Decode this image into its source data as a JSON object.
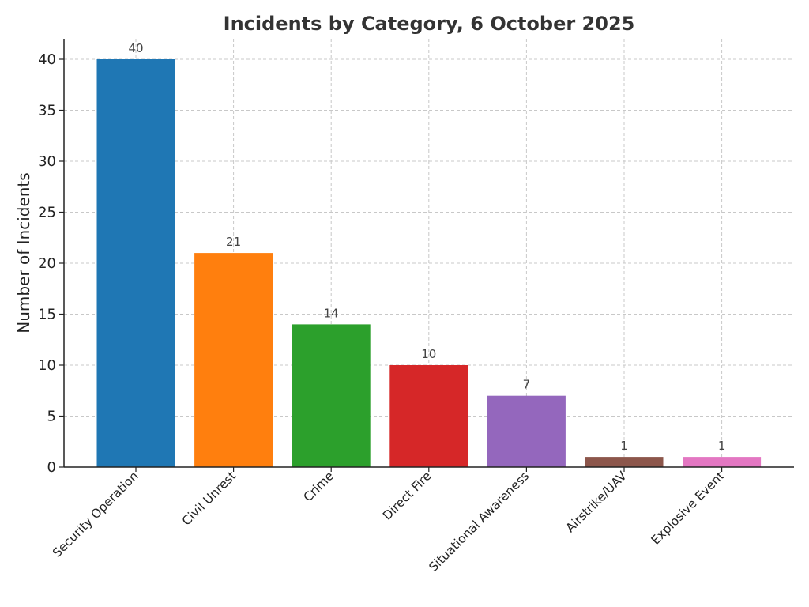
{
  "chart_data": {
    "type": "bar",
    "title": "Incidents by Category, 6 October 2025",
    "xlabel": "",
    "ylabel": "Number of Incidents",
    "categories": [
      "Security Operation",
      "Civil Unrest",
      "Crime",
      "Direct Fire",
      "Situational Awareness",
      "Airstrike/UAV",
      "Explosive Event"
    ],
    "values": [
      40,
      21,
      14,
      10,
      7,
      1,
      1
    ],
    "colors": [
      "#1f77b4",
      "#ff7f0e",
      "#2ca02c",
      "#d62728",
      "#9467bd",
      "#8c564b",
      "#e377c2"
    ],
    "ylim": [
      0,
      42
    ],
    "yticks": [
      0,
      5,
      10,
      15,
      20,
      25,
      30,
      35,
      40
    ],
    "grid": true,
    "data_labels": true
  }
}
